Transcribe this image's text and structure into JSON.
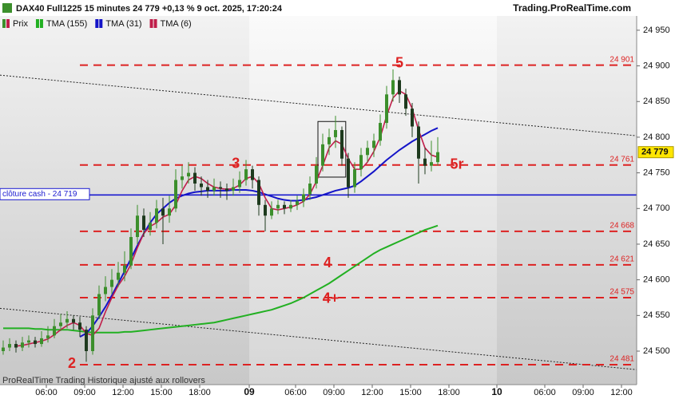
{
  "chart_data": {
    "type": "candlestick",
    "title": "DAX40 Full1225 15 minutes 24 779 +0,13 % 9 oct. 2025, 17:20:24",
    "source": "Trading.ProRealTime.com",
    "note": "ProRealTime Trading Historique ajusté aux rollovers",
    "price_name": "Prix",
    "up_color": "#3c8f2c",
    "down_color": "#1e3a1e",
    "ohlc": [
      [
        24500,
        24515,
        24495,
        24505
      ],
      [
        24505,
        24518,
        24500,
        24510
      ],
      [
        24510,
        24515,
        24498,
        24505
      ],
      [
        24505,
        24520,
        24500,
        24512
      ],
      [
        24512,
        24522,
        24505,
        24515
      ],
      [
        24515,
        24520,
        24505,
        24510
      ],
      [
        24510,
        24528,
        24506,
        24518
      ],
      [
        24518,
        24535,
        24512,
        24522
      ],
      [
        24522,
        24545,
        24518,
        24535
      ],
      [
        24535,
        24552,
        24528,
        24540
      ],
      [
        24540,
        24556,
        24532,
        24545
      ],
      [
        24545,
        24550,
        24530,
        24540
      ],
      [
        24540,
        24548,
        24520,
        24530
      ],
      [
        24530,
        24535,
        24485,
        24500
      ],
      [
        24500,
        24560,
        24495,
        24550
      ],
      [
        24550,
        24592,
        24545,
        24580
      ],
      [
        24580,
        24605,
        24570,
        24590
      ],
      [
        24590,
        24615,
        24580,
        24600
      ],
      [
        24600,
        24625,
        24590,
        24610
      ],
      [
        24610,
        24640,
        24598,
        24620
      ],
      [
        24620,
        24672,
        24615,
        24660
      ],
      [
        24660,
        24705,
        24650,
        24690
      ],
      [
        24690,
        24700,
        24660,
        24670
      ],
      [
        24670,
        24695,
        24662,
        24680
      ],
      [
        24680,
        24712,
        24672,
        24700
      ],
      [
        24700,
        24715,
        24650,
        24690
      ],
      [
        24690,
        24718,
        24680,
        24700
      ],
      [
        24700,
        24755,
        24695,
        24740
      ],
      [
        24740,
        24760,
        24728,
        24745
      ],
      [
        24745,
        24765,
        24735,
        24750
      ],
      [
        24750,
        24758,
        24725,
        24735
      ],
      [
        24735,
        24745,
        24718,
        24730
      ],
      [
        24730,
        24740,
        24715,
        24725
      ],
      [
        24725,
        24742,
        24718,
        24730
      ],
      [
        24730,
        24738,
        24715,
        24728
      ],
      [
        24728,
        24735,
        24712,
        24725
      ],
      [
        24725,
        24742,
        24718,
        24730
      ],
      [
        24730,
        24752,
        24722,
        24740
      ],
      [
        24740,
        24768,
        24732,
        24755
      ],
      [
        24755,
        24760,
        24728,
        24740
      ],
      [
        24740,
        24745,
        24690,
        24705
      ],
      [
        24705,
        24712,
        24668,
        24690
      ],
      [
        24690,
        24710,
        24685,
        24700
      ],
      [
        24700,
        24712,
        24692,
        24705
      ],
      [
        24705,
        24710,
        24692,
        24700
      ],
      [
        24700,
        24712,
        24695,
        24705
      ],
      [
        24705,
        24718,
        24698,
        24710
      ],
      [
        24710,
        24728,
        24702,
        24720
      ],
      [
        24720,
        24745,
        24712,
        24735
      ],
      [
        24735,
        24772,
        24728,
        24760
      ],
      [
        24760,
        24805,
        24752,
        24790
      ],
      [
        24790,
        24812,
        24775,
        24800
      ],
      [
        24800,
        24830,
        24785,
        24810
      ],
      [
        24810,
        24815,
        24760,
        24770
      ],
      [
        24770,
        24778,
        24715,
        24730
      ],
      [
        24730,
        24765,
        24722,
        24755
      ],
      [
        24755,
        24785,
        24745,
        24775
      ],
      [
        24775,
        24795,
        24765,
        24785
      ],
      [
        24785,
        24805,
        24772,
        24795
      ],
      [
        24795,
        24832,
        24788,
        24820
      ],
      [
        24820,
        24872,
        24812,
        24860
      ],
      [
        24860,
        24895,
        24850,
        24880
      ],
      [
        24880,
        24885,
        24848,
        24860
      ],
      [
        24860,
        24868,
        24830,
        24840
      ],
      [
        24840,
        24848,
        24800,
        24815
      ],
      [
        24815,
        24822,
        24735,
        24770
      ],
      [
        24770,
        24785,
        24748,
        24760
      ],
      [
        24760,
        24795,
        24752,
        24765
      ],
      [
        24765,
        24800,
        24760,
        24779
      ]
    ],
    "series": [
      {
        "name": "TMA (155)",
        "color": "#22b022",
        "values": [
          24532,
          24532,
          24532,
          24532,
          24532,
          24531,
          24531,
          24530,
          24530,
          24530,
          24530,
          24529,
          24528,
          24527,
          24526,
          24526,
          24526,
          24526,
          24526,
          24527,
          24527,
          24528,
          24529,
          24530,
          24531,
          24532,
          24533,
          24534,
          24535,
          24536,
          24537,
          24538,
          24539,
          24540,
          24542,
          24544,
          24546,
          24548,
          24550,
          24552,
          24554,
          24556,
          24558,
          24561,
          24564,
          24567,
          24571,
          24575,
          24580,
          24585,
          24590,
          24595,
          24601,
          24607,
          24613,
          24619,
          24625,
          24631,
          24637,
          24642,
          24646,
          24650,
          24654,
          24658,
          24662,
          24666,
          24670,
          24673,
          24676
        ]
      },
      {
        "name": "TMA (31)",
        "color": "#1414c8",
        "values": [
          null,
          null,
          null,
          null,
          null,
          null,
          null,
          null,
          null,
          null,
          null,
          null,
          24520,
          24525,
          24535,
          24548,
          24562,
          24578,
          24595,
          24612,
          24630,
          24648,
          24665,
          24680,
          24692,
          24700,
          24708,
          24714,
          24718,
          24721,
          24723,
          24724,
          24725,
          24725,
          24725,
          24725,
          24726,
          24726,
          24726,
          24725,
          24723,
          24720,
          24717,
          24714,
          24712,
          24711,
          24711,
          24712,
          24714,
          24716,
          24719,
          24722,
          24725,
          24727,
          24729,
          24732,
          24738,
          24745,
          24752,
          24760,
          24768,
          24775,
          24782,
          24788,
          24794,
          24799,
          24804,
          24809,
          24813
        ]
      },
      {
        "name": "TMA (6)",
        "color": "#c01e4a",
        "values": [
          null,
          null,
          24507,
          24508,
          24510,
          24512,
          24514,
          24517,
          24523,
          24530,
          24536,
          24540,
          24536,
          24525,
          24522,
          24532,
          24555,
          24575,
          24592,
          24605,
          24622,
          24645,
          24665,
          24675,
          24680,
          24688,
          24692,
          24705,
          24725,
          24740,
          24745,
          24742,
          24735,
          24730,
          24728,
          24727,
          24728,
          24733,
          24742,
          24745,
          24735,
          24715,
          24700,
          24698,
          24700,
          24702,
          24705,
          24710,
          24720,
          24738,
          24760,
          24785,
          24795,
          24790,
          24770,
          24755,
          24755,
          24765,
          24780,
          24800,
          24830,
          24855,
          24865,
          24860,
          24840,
          24810,
          24785,
          24775,
          24772
        ]
      }
    ],
    "xlim": [
      -0.5,
      99.125
    ],
    "ylim": [
      24453,
      24970
    ],
    "xticks": [
      {
        "value": 6.75,
        "label": "06:00"
      },
      {
        "value": 12.75,
        "label": "09:00"
      },
      {
        "value": 18.75,
        "label": "12:00"
      },
      {
        "value": 24.75,
        "label": "15:00"
      },
      {
        "value": 30.75,
        "label": "18:00"
      },
      {
        "value": 38.5,
        "label": "09"
      },
      {
        "value": 45.75,
        "label": "06:00"
      },
      {
        "value": 51.75,
        "label": "09:00"
      },
      {
        "value": 57.75,
        "label": "12:00"
      },
      {
        "value": 63.75,
        "label": "15:00"
      },
      {
        "value": 69.75,
        "label": "18:00"
      },
      {
        "value": 77.25,
        "label": "10"
      },
      {
        "value": 84.75,
        "label": "06:00"
      },
      {
        "value": 90.75,
        "label": "09:00"
      },
      {
        "value": 96.75,
        "label": "12:00"
      }
    ],
    "yticks": [
      {
        "value": 24950,
        "label": "24 950"
      },
      {
        "value": 24900,
        "label": "24 900"
      },
      {
        "value": 24850,
        "label": "24 850"
      },
      {
        "value": 24800,
        "label": "24 800"
      },
      {
        "value": 24750,
        "label": "24 750"
      },
      {
        "value": 24700,
        "label": "24 700"
      },
      {
        "value": 24650,
        "label": "24 650"
      },
      {
        "value": 24600,
        "label": "24 600"
      },
      {
        "value": 24550,
        "label": "24 550"
      },
      {
        "value": 24500,
        "label": "24 500"
      }
    ],
    "levels": [
      {
        "value": 24901,
        "label": "24 901"
      },
      {
        "value": 24761,
        "label": "24 761"
      },
      {
        "value": 24668,
        "label": "24 668"
      },
      {
        "value": 24621,
        "label": "24 621"
      },
      {
        "value": 24575,
        "label": "24 575"
      },
      {
        "value": 24481,
        "label": "24 481"
      }
    ],
    "level_color": "#dd2222",
    "cash_close": {
      "value": 24719,
      "label": "clôture cash -  24 719",
      "color": "#1a1ad0"
    },
    "last_price": {
      "value": 24779,
      "label": "24 779"
    },
    "annotations": [
      {
        "text": "5",
        "x": 62,
        "y": 24903
      },
      {
        "text": "3",
        "x": 36.4,
        "y": 24762
      },
      {
        "text": "4",
        "x": 50.75,
        "y": 24623
      },
      {
        "text": "4+",
        "x": 51.25,
        "y": 24573
      },
      {
        "text": "2",
        "x": 10.75,
        "y": 24482
      },
      {
        "text": "5r",
        "x": 71,
        "y": 24761
      }
    ],
    "trendlines": [
      {
        "x": [
          -0.5,
          99.125
        ],
        "y": [
          24887,
          24802
        ]
      },
      {
        "x": [
          -0.5,
          99.125
        ],
        "y": [
          24560,
          24474
        ]
      }
    ],
    "box": {
      "x": [
        49.25,
        53.6
      ],
      "y": [
        24744,
        24822
      ]
    }
  }
}
